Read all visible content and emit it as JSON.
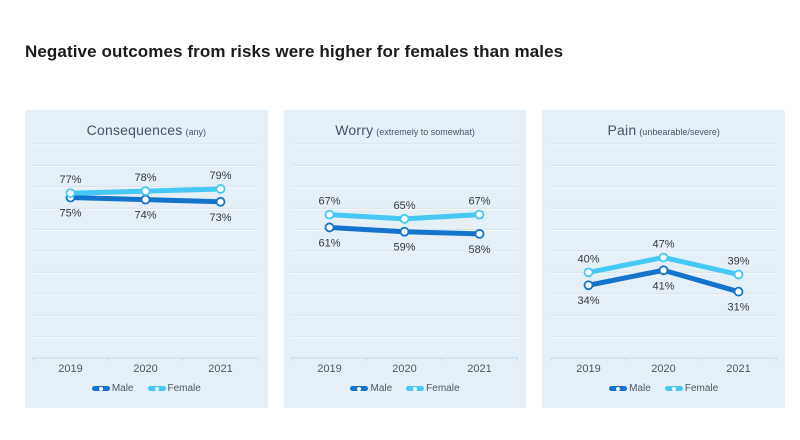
{
  "page": {
    "title": "Negative outcomes from risks were higher for females than males"
  },
  "colors": {
    "male": "#1473CC",
    "female": "#45C8F4",
    "panel-bg": "#E4EFF8",
    "grid": "#D8E2EC",
    "grid-highlight": "#FFFFFF",
    "axis": "#C9D5E0",
    "data-label": "#3A3A3A",
    "tick-label": "#4A5A68",
    "panel-title": "#44546A",
    "page-title": "#1B1B1B"
  },
  "chart_data": [
    {
      "type": "line",
      "title": "Consequences",
      "subtitle": "(any)",
      "categories": [
        "2019",
        "2020",
        "2021"
      ],
      "series": [
        {
          "name": "Male",
          "color": "#1473CC",
          "values": [
            75,
            74,
            73
          ],
          "labels": [
            "75%",
            "74%",
            "73%"
          ],
          "label_position": "below"
        },
        {
          "name": "Female",
          "color": "#45C8F4",
          "values": [
            77,
            78,
            79
          ],
          "labels": [
            "77%",
            "78%",
            "79%"
          ],
          "label_position": "above"
        }
      ],
      "ylim": [
        0,
        100
      ],
      "grid_step": 10,
      "grid": true,
      "legend_position": "bottom"
    },
    {
      "type": "line",
      "title": "Worry",
      "subtitle": "(extremely to somewhat)",
      "categories": [
        "2019",
        "2020",
        "2021"
      ],
      "series": [
        {
          "name": "Male",
          "color": "#1473CC",
          "values": [
            61,
            59,
            58
          ],
          "labels": [
            "61%",
            "59%",
            "58%"
          ],
          "label_position": "below"
        },
        {
          "name": "Female",
          "color": "#45C8F4",
          "values": [
            67,
            65,
            67
          ],
          "labels": [
            "67%",
            "65%",
            "67%"
          ],
          "label_position": "above"
        }
      ],
      "ylim": [
        0,
        100
      ],
      "grid_step": 10,
      "grid": true,
      "legend_position": "bottom"
    },
    {
      "type": "line",
      "title": "Pain",
      "subtitle": "(unbearable/severe)",
      "categories": [
        "2019",
        "2020",
        "2021"
      ],
      "series": [
        {
          "name": "Male",
          "color": "#1473CC",
          "values": [
            34,
            41,
            31
          ],
          "labels": [
            "34%",
            "41%",
            "31%"
          ],
          "label_position": "below"
        },
        {
          "name": "Female",
          "color": "#45C8F4",
          "values": [
            40,
            47,
            39
          ],
          "labels": [
            "40%",
            "47%",
            "39%"
          ],
          "label_position": "above"
        }
      ],
      "ylim": [
        0,
        100
      ],
      "grid_step": 10,
      "grid": true,
      "legend_position": "bottom"
    }
  ]
}
